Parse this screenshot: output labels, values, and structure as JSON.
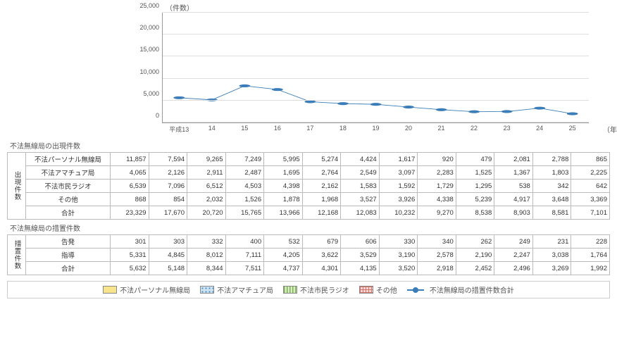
{
  "chart": {
    "type": "stacked-bar-with-line",
    "ylabel": "（件数）",
    "xlabel": "（年度）",
    "ylim": [
      0,
      25000
    ],
    "ytick_step": 5000,
    "yticks": [
      "0",
      "5,000",
      "10,000",
      "15,000",
      "20,000",
      "25,000"
    ],
    "categories": [
      "平成13",
      "14",
      "15",
      "16",
      "17",
      "18",
      "19",
      "20",
      "21",
      "22",
      "23",
      "24",
      "25"
    ],
    "series_order": [
      "other",
      "citizen",
      "amateur",
      "personal"
    ],
    "series": {
      "personal": {
        "label": "不法パーソナル無線局",
        "class": "fill-yellow",
        "values": [
          11857,
          7594,
          9265,
          7249,
          5995,
          5274,
          4424,
          1617,
          920,
          479,
          2081,
          2788,
          865
        ]
      },
      "amateur": {
        "label": "不法アマチュア局",
        "class": "fill-blue-dots",
        "values": [
          4065,
          2126,
          2911,
          2487,
          1695,
          2764,
          2549,
          3097,
          2283,
          1525,
          1367,
          1803,
          2225
        ]
      },
      "citizen": {
        "label": "不法市民ラジオ",
        "class": "fill-green-stripe",
        "values": [
          6539,
          7096,
          6512,
          4503,
          4398,
          2162,
          1583,
          1592,
          1729,
          1295,
          538,
          342,
          642
        ]
      },
      "other": {
        "label": "その他",
        "class": "fill-red-cross",
        "values": [
          868,
          854,
          2032,
          1526,
          1878,
          1968,
          3527,
          3926,
          4338,
          5239,
          4917,
          3648,
          3369
        ]
      }
    },
    "line": {
      "label": "不法無線局の措置件数合計",
      "color": "#3a7db8",
      "values": [
        5632,
        5148,
        8344,
        7511,
        4737,
        4301,
        4135,
        3520,
        2918,
        2452,
        2496,
        3269,
        1992
      ]
    },
    "background_color": "#ffffff",
    "grid_color": "#dddddd",
    "bar_width_pct": 60
  },
  "table1": {
    "title": "不法無線局の出現件数",
    "group_label": "出現件数",
    "rows": [
      {
        "label": "不法パーソナル無線局",
        "values": [
          "11,857",
          "7,594",
          "9,265",
          "7,249",
          "5,995",
          "5,274",
          "4,424",
          "1,617",
          "920",
          "479",
          "2,081",
          "2,788",
          "865"
        ]
      },
      {
        "label": "不法アマチュア局",
        "values": [
          "4,065",
          "2,126",
          "2,911",
          "2,487",
          "1,695",
          "2,764",
          "2,549",
          "3,097",
          "2,283",
          "1,525",
          "1,367",
          "1,803",
          "2,225"
        ]
      },
      {
        "label": "不法市民ラジオ",
        "values": [
          "6,539",
          "7,096",
          "6,512",
          "4,503",
          "4,398",
          "2,162",
          "1,583",
          "1,592",
          "1,729",
          "1,295",
          "538",
          "342",
          "642"
        ]
      },
      {
        "label": "その他",
        "values": [
          "868",
          "854",
          "2,032",
          "1,526",
          "1,878",
          "1,968",
          "3,527",
          "3,926",
          "4,338",
          "5,239",
          "4,917",
          "3,648",
          "3,369"
        ]
      },
      {
        "label": "合計",
        "values": [
          "23,329",
          "17,670",
          "20,720",
          "15,765",
          "13,966",
          "12,168",
          "12,083",
          "10,232",
          "9,270",
          "8,538",
          "8,903",
          "8,581",
          "7,101"
        ]
      }
    ]
  },
  "table2": {
    "title": "不法無線局の措置件数",
    "group_label": "措置件数",
    "rows": [
      {
        "label": "告発",
        "values": [
          "301",
          "303",
          "332",
          "400",
          "532",
          "679",
          "606",
          "330",
          "340",
          "262",
          "249",
          "231",
          "228"
        ]
      },
      {
        "label": "指導",
        "values": [
          "5,331",
          "4,845",
          "8,012",
          "7,111",
          "4,205",
          "3,622",
          "3,529",
          "3,190",
          "2,578",
          "2,190",
          "2,247",
          "3,038",
          "1,764"
        ]
      },
      {
        "label": "合計",
        "values": [
          "5,632",
          "5,148",
          "8,344",
          "7,511",
          "4,737",
          "4,301",
          "4,135",
          "3,520",
          "2,918",
          "2,452",
          "2,496",
          "3,269",
          "1,992"
        ]
      }
    ]
  },
  "legend": {
    "items": [
      {
        "class": "fill-yellow",
        "label": "不法パーソナル無線局"
      },
      {
        "class": "fill-blue-dots",
        "label": "不法アマチュア局"
      },
      {
        "class": "fill-green-stripe",
        "label": "不法市民ラジオ"
      },
      {
        "class": "fill-red-cross",
        "label": "その他"
      }
    ],
    "line_label": "不法無線局の措置件数合計"
  }
}
